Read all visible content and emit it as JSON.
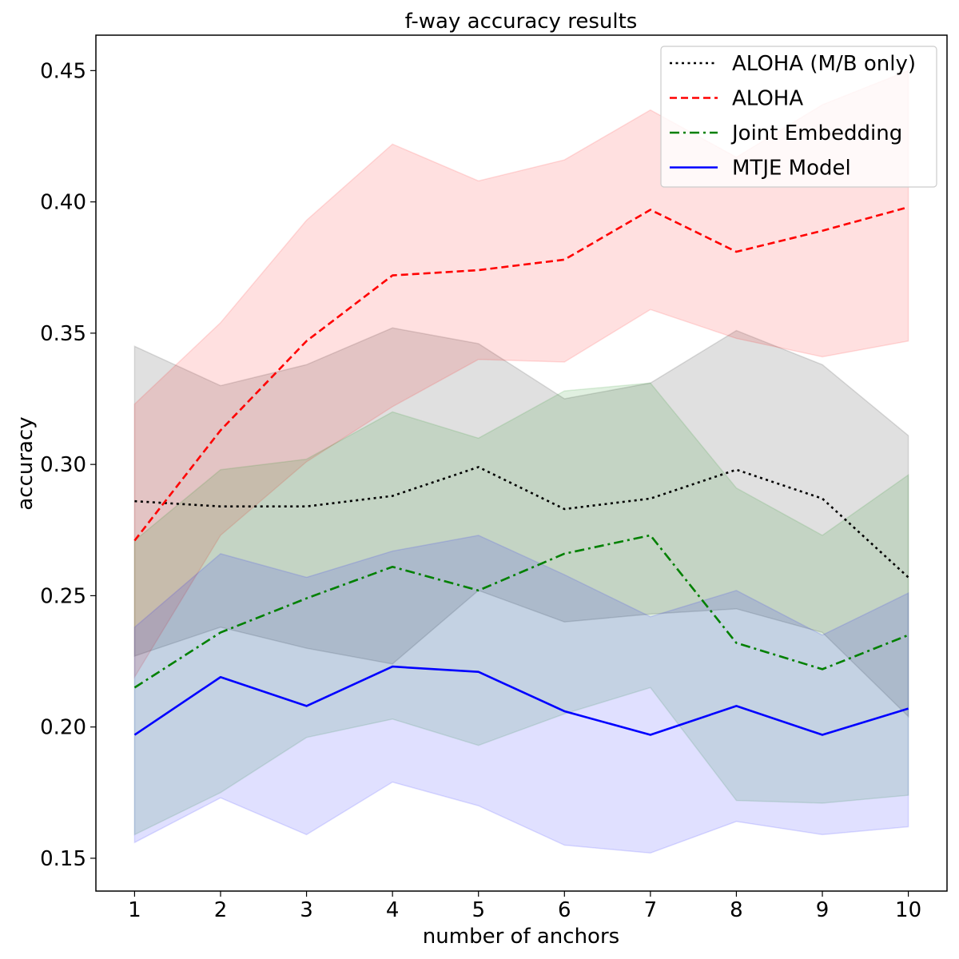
{
  "chart_data": {
    "type": "line",
    "title": "f-way accuracy results",
    "xlabel": "number of anchors",
    "ylabel": "accuracy",
    "x": [
      1,
      2,
      3,
      4,
      5,
      6,
      7,
      8,
      9,
      10
    ],
    "xticks": [
      "1",
      "2",
      "3",
      "4",
      "5",
      "6",
      "7",
      "8",
      "9",
      "10"
    ],
    "xlim": [
      0.55,
      10.45
    ],
    "ylim": [
      0.1375,
      0.4635
    ],
    "yticks": [
      "0.15",
      "0.20",
      "0.25",
      "0.30",
      "0.35",
      "0.40",
      "0.45"
    ],
    "grid": false,
    "legend_position": "top-right",
    "series": [
      {
        "name": "ALOHA (M/B only)",
        "color": "#000000",
        "linestyle": "dotted",
        "values": [
          0.286,
          0.284,
          0.284,
          0.288,
          0.299,
          0.283,
          0.287,
          0.298,
          0.287,
          0.257
        ],
        "band_upper": [
          0.345,
          0.33,
          0.338,
          0.352,
          0.346,
          0.325,
          0.331,
          0.351,
          0.338,
          0.311
        ],
        "band_lower": [
          0.227,
          0.238,
          0.23,
          0.224,
          0.252,
          0.24,
          0.243,
          0.245,
          0.236,
          0.204
        ]
      },
      {
        "name": "ALOHA",
        "color": "#ff0000",
        "linestyle": "dashed",
        "values": [
          0.271,
          0.313,
          0.347,
          0.372,
          0.374,
          0.378,
          0.397,
          0.381,
          0.389,
          0.398
        ],
        "band_upper": [
          0.323,
          0.354,
          0.393,
          0.422,
          0.408,
          0.416,
          0.435,
          0.417,
          0.437,
          0.45
        ],
        "band_lower": [
          0.219,
          0.273,
          0.301,
          0.322,
          0.34,
          0.339,
          0.359,
          0.348,
          0.341,
          0.347
        ]
      },
      {
        "name": "Joint Embedding",
        "color": "#008000",
        "linestyle": "dashdot",
        "values": [
          0.215,
          0.236,
          0.249,
          0.261,
          0.252,
          0.266,
          0.273,
          0.232,
          0.222,
          0.235
        ],
        "band_upper": [
          0.271,
          0.298,
          0.302,
          0.32,
          0.31,
          0.328,
          0.331,
          0.291,
          0.273,
          0.296
        ],
        "band_lower": [
          0.159,
          0.175,
          0.196,
          0.203,
          0.193,
          0.205,
          0.215,
          0.172,
          0.171,
          0.174
        ]
      },
      {
        "name": "MTJE Model",
        "color": "#0000ff",
        "linestyle": "solid",
        "values": [
          0.197,
          0.219,
          0.208,
          0.223,
          0.221,
          0.206,
          0.197,
          0.208,
          0.197,
          0.207
        ],
        "band_upper": [
          0.238,
          0.266,
          0.257,
          0.267,
          0.273,
          0.258,
          0.242,
          0.252,
          0.235,
          0.251
        ],
        "band_lower": [
          0.156,
          0.173,
          0.159,
          0.179,
          0.17,
          0.155,
          0.152,
          0.164,
          0.159,
          0.162
        ]
      }
    ]
  }
}
